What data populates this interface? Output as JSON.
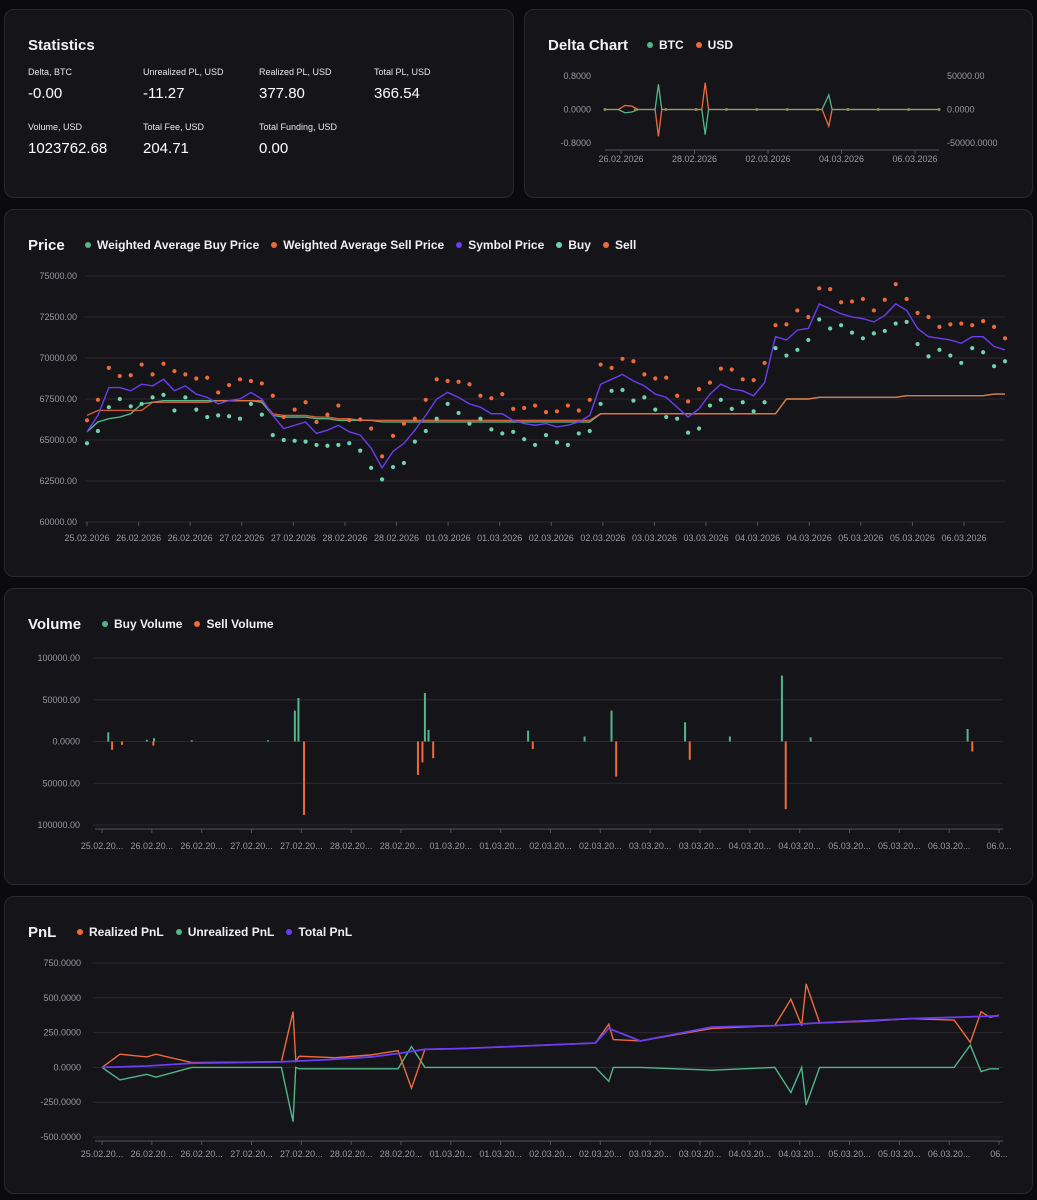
{
  "colors": {
    "green": "#52b788",
    "orange": "#ef6a3a",
    "purple": "#6a3df0",
    "teal": "#6fd3b0",
    "olive": "#8f8a55"
  },
  "statistics": {
    "title": "Statistics",
    "items": [
      {
        "label": "Delta, BTC",
        "value": "-0.00"
      },
      {
        "label": "Unrealized PL, USD",
        "value": "-11.27"
      },
      {
        "label": "Realized PL, USD",
        "value": "377.80"
      },
      {
        "label": "Total PL, USD",
        "value": "366.54"
      },
      {
        "label": "Volume, USD",
        "value": "1023762.68"
      },
      {
        "label": "Total Fee, USD",
        "value": "204.71"
      },
      {
        "label": "Total Funding, USD",
        "value": "0.00"
      }
    ]
  },
  "chart_data": [
    {
      "id": "delta",
      "type": "line",
      "title": "Delta Chart",
      "legend": [
        {
          "name": "BTC",
          "color": "#52b788"
        },
        {
          "name": "USD",
          "color": "#ef6a3a"
        }
      ],
      "y_left_ticks": [
        "0.8000",
        "0.0000",
        "-0.8000"
      ],
      "y_right_ticks": [
        "50000.00",
        "0.0000",
        "-50000.0000"
      ],
      "x_ticks": [
        "26.02.2026",
        "28.02.2026",
        "02.03.2026",
        "04.03.2026",
        "06.03.2026"
      ],
      "ylim_left": [
        -0.8,
        0.8
      ],
      "ylim_right": [
        -50000,
        50000
      ],
      "series": [
        {
          "name": "BTC",
          "x": [
            0,
            0.04,
            0.06,
            0.08,
            0.1,
            0.15,
            0.16,
            0.17,
            0.2,
            0.25,
            0.29,
            0.3,
            0.31,
            0.35,
            0.4,
            0.47,
            0.5,
            0.55,
            0.6,
            0.65,
            0.67,
            0.68,
            0.69,
            0.75,
            0.8,
            0.85,
            0.9,
            0.95,
            1.0
          ],
          "y": [
            0,
            0,
            -0.08,
            -0.06,
            0,
            0,
            0.6,
            0,
            0,
            0,
            0,
            -0.6,
            0,
            0,
            0,
            0,
            0,
            0,
            0,
            0,
            0.35,
            0,
            0,
            0,
            0,
            0,
            0,
            0,
            0
          ]
        },
        {
          "name": "USD",
          "x": [
            0,
            0.04,
            0.06,
            0.08,
            0.1,
            0.15,
            0.16,
            0.17,
            0.2,
            0.25,
            0.29,
            0.3,
            0.31,
            0.35,
            0.4,
            0.47,
            0.5,
            0.55,
            0.6,
            0.65,
            0.67,
            0.68,
            0.69,
            0.75,
            0.8,
            0.85,
            0.9,
            0.95,
            1.0
          ],
          "y": [
            0,
            0,
            6000,
            5000,
            0,
            0,
            -40000,
            0,
            0,
            0,
            0,
            40000,
            0,
            0,
            0,
            0,
            0,
            0,
            0,
            0,
            -25000,
            0,
            0,
            0,
            0,
            0,
            0,
            0,
            0
          ]
        }
      ]
    },
    {
      "id": "price",
      "type": "line",
      "title": "Price",
      "legend": [
        {
          "name": "Weighted Average Buy Price",
          "color": "#52b788"
        },
        {
          "name": "Weighted Average Sell Price",
          "color": "#ef6a3a"
        },
        {
          "name": "Symbol Price",
          "color": "#6a3df0"
        },
        {
          "name": "Buy",
          "color": "#6fd3b0"
        },
        {
          "name": "Sell",
          "color": "#ef6a3a"
        }
      ],
      "y_ticks": [
        "75000.00",
        "72500.00",
        "70000.00",
        "67500.00",
        "65000.00",
        "62500.00",
        "60000.00"
      ],
      "ylim": [
        60000,
        75000
      ],
      "x_ticks": [
        "25.02.2026",
        "26.02.2026",
        "26.02.2026",
        "27.02.2026",
        "27.02.2026",
        "28.02.2026",
        "28.02.2026",
        "01.03.2026",
        "01.03.2026",
        "02.03.2026",
        "02.03.2026",
        "03.03.2026",
        "03.03.2026",
        "04.03.2026",
        "04.03.2026",
        "05.03.2026",
        "05.03.2026",
        "06.03.2026"
      ],
      "symbol_price": [
        65500,
        66500,
        68200,
        68200,
        68000,
        68400,
        68300,
        68700,
        68000,
        68300,
        67800,
        67600,
        67200,
        67400,
        67500,
        67900,
        67500,
        66500,
        65700,
        65900,
        66100,
        65400,
        65600,
        65900,
        65500,
        65300,
        64500,
        63300,
        64300,
        64800,
        65600,
        66500,
        67500,
        67900,
        67600,
        67200,
        67000,
        66600,
        66600,
        66200,
        66000,
        65900,
        66000,
        65800,
        65900,
        66100,
        66500,
        68400,
        68700,
        69000,
        68600,
        68300,
        67800,
        67600,
        67000,
        66400,
        66900,
        67800,
        68400,
        68100,
        68000,
        67700,
        68500,
        71300,
        71100,
        71700,
        71800,
        73300,
        73000,
        72700,
        72500,
        72400,
        72200,
        72600,
        73300,
        72900,
        71800,
        71300,
        71200,
        71100,
        70900,
        71300,
        71300,
        70700,
        70500
      ],
      "wavg_buy": [
        65500,
        66100,
        66300,
        66400,
        66600,
        67200,
        67300,
        67400,
        67400,
        67400,
        67400,
        67400,
        67400,
        67400,
        67400,
        67400,
        67300,
        66500,
        66400,
        66400,
        66400,
        66300,
        66300,
        66200,
        66200,
        66200,
        66200,
        66100,
        66100,
        66100,
        66100,
        66100,
        66100,
        66100,
        66100,
        66100,
        66100,
        66100,
        66100,
        66100,
        66100,
        66100,
        66100,
        66100,
        66100,
        66100,
        66100,
        66600,
        66600,
        66600,
        66600,
        66600,
        66600,
        66600,
        66600,
        66600,
        66600,
        66600,
        66600,
        66600,
        66600,
        66600,
        66600,
        66600,
        67500,
        67500,
        67500,
        67600,
        67600,
        67600,
        67600,
        67600,
        67600,
        67600,
        67600,
        67700,
        67700,
        67700,
        67700,
        67700,
        67700,
        67700,
        67700,
        67800,
        67800
      ],
      "wavg_sell": [
        66500,
        66800,
        66800,
        66800,
        66800,
        66800,
        67300,
        67300,
        67300,
        67300,
        67300,
        67300,
        67400,
        67400,
        67400,
        67400,
        67400,
        66600,
        66500,
        66500,
        66500,
        66400,
        66400,
        66300,
        66300,
        66200,
        66200,
        66200,
        66200,
        66200,
        66200,
        66200,
        66200,
        66200,
        66200,
        66200,
        66200,
        66200,
        66200,
        66200,
        66200,
        66200,
        66200,
        66200,
        66200,
        66200,
        66200,
        66600,
        66600,
        66600,
        66600,
        66600,
        66600,
        66600,
        66600,
        66600,
        66600,
        66600,
        66600,
        66600,
        66600,
        66600,
        66600,
        66600,
        67500,
        67500,
        67500,
        67600,
        67600,
        67600,
        67600,
        67600,
        67600,
        67600,
        67600,
        67700,
        67700,
        67700,
        67700,
        67700,
        67700,
        67700,
        67700,
        67800,
        67800
      ]
    },
    {
      "id": "volume",
      "type": "bar",
      "title": "Volume",
      "legend": [
        {
          "name": "Buy Volume",
          "color": "#52b788"
        },
        {
          "name": "Sell Volume",
          "color": "#ef6a3a"
        }
      ],
      "y_ticks": [
        "100000.00",
        "50000.00",
        "0.0000",
        "50000.00",
        "100000.00"
      ],
      "ylim": [
        -100000,
        100000
      ],
      "x_ticks": [
        "25.02.20...",
        "26.02.20...",
        "26.02.20...",
        "27.02.20...",
        "27.02.20...",
        "28.02.20...",
        "28.02.20...",
        "01.03.20...",
        "01.03.20...",
        "02.03.20...",
        "02.03.20...",
        "03.03.20...",
        "03.03.20...",
        "04.03.20...",
        "04.03.20...",
        "05.03.20...",
        "05.03.20...",
        "06.03.20...",
        "06.0..."
      ],
      "buy": [
        {
          "x": 0.007,
          "v": 11000
        },
        {
          "x": 0.05,
          "v": 2000
        },
        {
          "x": 0.058,
          "v": 4000
        },
        {
          "x": 0.1,
          "v": 1500
        },
        {
          "x": 0.185,
          "v": 1500
        },
        {
          "x": 0.215,
          "v": 37000
        },
        {
          "x": 0.219,
          "v": 52000
        },
        {
          "x": 0.36,
          "v": 58000
        },
        {
          "x": 0.364,
          "v": 14000
        },
        {
          "x": 0.475,
          "v": 13000
        },
        {
          "x": 0.538,
          "v": 6000
        },
        {
          "x": 0.568,
          "v": 37000
        },
        {
          "x": 0.65,
          "v": 23000
        },
        {
          "x": 0.7,
          "v": 6000
        },
        {
          "x": 0.758,
          "v": 79000
        },
        {
          "x": 0.79,
          "v": 5000
        },
        {
          "x": 0.965,
          "v": 15000
        }
      ],
      "sell": [
        {
          "x": 0.009,
          "v": -10000
        },
        {
          "x": 0.02,
          "v": -4000
        },
        {
          "x": 0.055,
          "v": -5000
        },
        {
          "x": 0.223,
          "v": -88000
        },
        {
          "x": 0.35,
          "v": -40000
        },
        {
          "x": 0.355,
          "v": -25000
        },
        {
          "x": 0.367,
          "v": -20000
        },
        {
          "x": 0.478,
          "v": -9000
        },
        {
          "x": 0.571,
          "v": -42000
        },
        {
          "x": 0.653,
          "v": -22000
        },
        {
          "x": 0.76,
          "v": -81000
        },
        {
          "x": 0.968,
          "v": -12000
        }
      ]
    },
    {
      "id": "pnl",
      "type": "line",
      "title": "PnL",
      "legend": [
        {
          "name": "Realized PnL",
          "color": "#ef6a3a"
        },
        {
          "name": "Unrealized PnL",
          "color": "#52b788"
        },
        {
          "name": "Total PnL",
          "color": "#6a3df0"
        }
      ],
      "y_ticks": [
        "750.0000",
        "500.0000",
        "250.0000",
        "0.0000",
        "-250.0000",
        "-500.0000"
      ],
      "ylim": [
        -500,
        750
      ],
      "x_ticks": [
        "25.02.20...",
        "26.02.20...",
        "26.02.20...",
        "27.02.20...",
        "27.02.20...",
        "28.02.20...",
        "28.02.20...",
        "01.03.20...",
        "01.03.20...",
        "02.03.20...",
        "02.03.20...",
        "03.03.20...",
        "03.03.20...",
        "04.03.20...",
        "04.03.20...",
        "05.03.20...",
        "05.03.20...",
        "06.03.20...",
        "06..."
      ],
      "realized": {
        "x": [
          0,
          0.02,
          0.05,
          0.06,
          0.1,
          0.2,
          0.213,
          0.216,
          0.22,
          0.26,
          0.3,
          0.33,
          0.345,
          0.36,
          0.4,
          0.55,
          0.565,
          0.57,
          0.6,
          0.68,
          0.75,
          0.768,
          0.78,
          0.785,
          0.8,
          0.85,
          0.9,
          0.95,
          0.968,
          0.98,
          0.99,
          1.0
        ],
        "y": [
          0,
          95,
          75,
          95,
          35,
          40,
          400,
          45,
          80,
          70,
          90,
          120,
          -150,
          130,
          135,
          175,
          310,
          200,
          190,
          280,
          300,
          490,
          300,
          600,
          320,
          330,
          350,
          340,
          180,
          400,
          360,
          375
        ]
      },
      "unrealized": {
        "x": [
          0,
          0.02,
          0.05,
          0.06,
          0.1,
          0.2,
          0.213,
          0.216,
          0.22,
          0.26,
          0.3,
          0.33,
          0.345,
          0.36,
          0.4,
          0.55,
          0.565,
          0.57,
          0.6,
          0.68,
          0.75,
          0.768,
          0.78,
          0.785,
          0.8,
          0.85,
          0.9,
          0.95,
          0.968,
          0.98,
          0.99,
          1.0
        ],
        "y": [
          0,
          -90,
          -50,
          -70,
          0,
          0,
          -390,
          0,
          -10,
          -10,
          -10,
          -10,
          150,
          0,
          0,
          0,
          -100,
          0,
          0,
          -20,
          0,
          -180,
          0,
          -270,
          0,
          0,
          0,
          0,
          160,
          -30,
          -10,
          -10
        ]
      },
      "total": {
        "x": [
          0,
          0.05,
          0.1,
          0.2,
          0.25,
          0.3,
          0.33,
          0.36,
          0.4,
          0.55,
          0.565,
          0.6,
          0.68,
          0.75,
          0.8,
          0.9,
          1.0
        ],
        "y": [
          0,
          10,
          30,
          40,
          55,
          75,
          100,
          130,
          135,
          175,
          280,
          190,
          290,
          300,
          320,
          350,
          370
        ]
      }
    }
  ]
}
